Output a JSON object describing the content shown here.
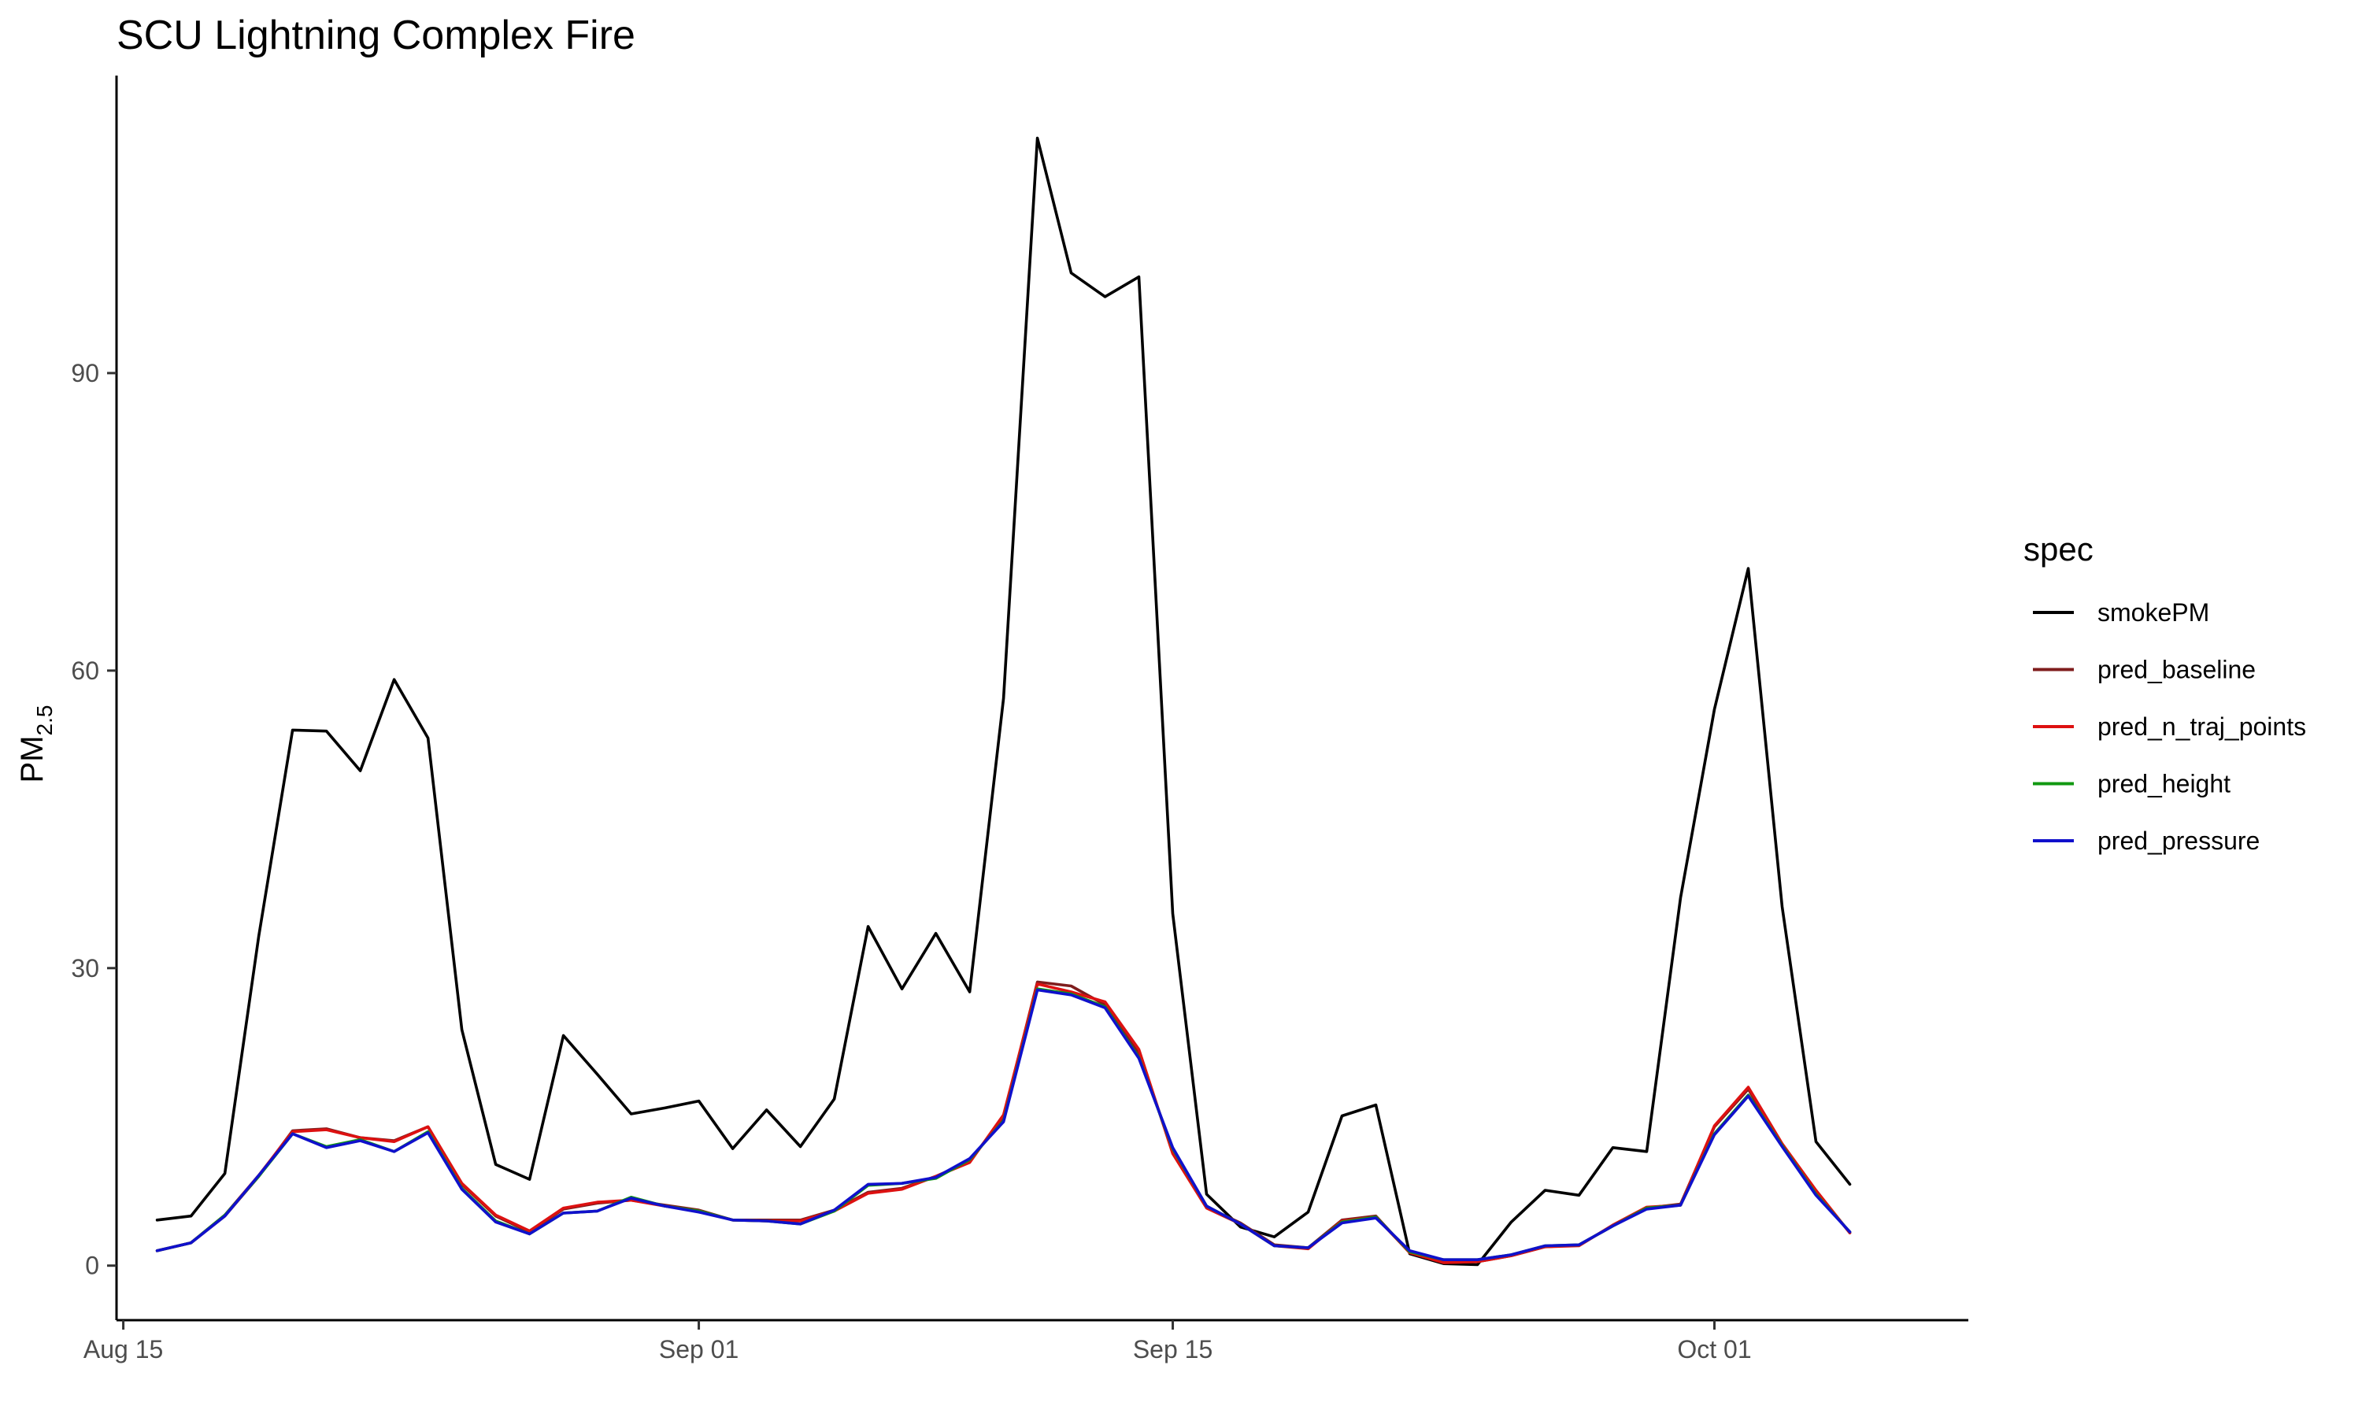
{
  "chart_data": {
    "type": "line",
    "title": "SCU Lightning Complex Fire",
    "ylabel_main": "PM",
    "ylabel_sub": "2.5",
    "xlabel": "",
    "ylim": [
      -5.5,
      120
    ],
    "xlim": [
      -1.2,
      53.5
    ],
    "x_start": "Aug 16",
    "x_step_days": 1,
    "yticks": [
      0,
      30,
      60,
      90
    ],
    "xticks": [
      {
        "day": -1,
        "label": "Aug 15"
      },
      {
        "day": 16,
        "label": "Sep 01"
      },
      {
        "day": 30,
        "label": "Sep 15"
      },
      {
        "day": 46,
        "label": "Oct 01"
      }
    ],
    "grid": false,
    "legend_title": "spec",
    "legend_position": "right",
    "series": [
      {
        "name": "smokePM",
        "color": "#000000",
        "values": [
          4.6,
          5.0,
          9.3,
          33.2,
          54.0,
          53.9,
          49.9,
          59.1,
          53.2,
          23.8,
          10.2,
          8.7,
          23.2,
          19.3,
          15.3,
          15.9,
          16.6,
          11.8,
          15.7,
          12.0,
          16.8,
          34.2,
          27.9,
          33.5,
          27.6,
          57.2,
          113.7,
          100.1,
          97.7,
          99.7,
          35.5,
          7.2,
          3.9,
          2.9,
          5.4,
          15.1,
          16.2,
          1.2,
          0.2,
          0.1,
          4.4,
          7.6,
          7.1,
          11.9,
          11.5,
          37.1,
          56.1,
          70.3,
          36.2,
          12.5,
          8.2
        ]
      },
      {
        "name": "pred_baseline",
        "color": "#7f1d1d",
        "values": [
          1.5,
          2.3,
          5.0,
          9.0,
          13.6,
          13.8,
          12.9,
          12.6,
          14.0,
          8.2,
          5.0,
          3.4,
          5.7,
          6.3,
          6.6,
          6.1,
          5.6,
          4.6,
          4.6,
          4.6,
          5.6,
          7.4,
          7.8,
          9.0,
          10.5,
          15.0,
          28.6,
          28.2,
          26.3,
          21.5,
          11.5,
          5.9,
          4.3,
          2.1,
          1.8,
          4.6,
          5.0,
          1.3,
          0.3,
          0.4,
          1.0,
          1.9,
          2.1,
          4.0,
          5.8,
          6.2,
          14.0,
          17.8,
          12.1,
          7.5,
          3.3
        ]
      },
      {
        "name": "pred_n_traj_points",
        "color": "#dd1111",
        "values": [
          1.5,
          2.3,
          5.1,
          9.1,
          13.5,
          13.7,
          12.9,
          12.5,
          14.0,
          8.3,
          5.1,
          3.5,
          5.8,
          6.4,
          6.6,
          6.0,
          5.5,
          4.6,
          4.5,
          4.5,
          5.5,
          7.3,
          7.7,
          9.0,
          10.4,
          15.2,
          28.4,
          27.6,
          26.6,
          21.8,
          11.3,
          5.8,
          4.2,
          2.0,
          1.7,
          4.5,
          4.9,
          1.3,
          0.3,
          0.4,
          1.0,
          1.9,
          2.0,
          4.1,
          5.9,
          6.1,
          14.1,
          18.0,
          12.3,
          7.6,
          3.3
        ]
      },
      {
        "name": "pred_height",
        "color": "#119911",
        "values": [
          1.5,
          2.3,
          5.1,
          9.0,
          13.3,
          12.0,
          12.7,
          11.5,
          13.5,
          7.8,
          4.5,
          3.2,
          5.3,
          5.5,
          6.9,
          6.0,
          5.5,
          4.6,
          4.5,
          4.2,
          5.5,
          8.1,
          8.3,
          8.8,
          10.7,
          14.6,
          27.9,
          27.4,
          26.1,
          21.0,
          11.8,
          6.0,
          4.2,
          2.0,
          1.8,
          4.4,
          4.9,
          1.4,
          0.6,
          0.6,
          1.1,
          2.0,
          2.1,
          4.0,
          5.8,
          6.1,
          13.3,
          17.2,
          12.1,
          7.2,
          3.4
        ]
      },
      {
        "name": "pred_pressure",
        "color": "#1010cc",
        "values": [
          1.5,
          2.3,
          5.0,
          9.1,
          13.3,
          11.9,
          12.6,
          11.5,
          13.4,
          7.7,
          4.4,
          3.2,
          5.3,
          5.5,
          6.8,
          6.0,
          5.4,
          4.6,
          4.5,
          4.2,
          5.6,
          8.2,
          8.3,
          8.9,
          10.8,
          14.5,
          27.8,
          27.3,
          26.0,
          20.9,
          11.9,
          6.0,
          4.2,
          2.0,
          1.8,
          4.3,
          4.8,
          1.5,
          0.6,
          0.6,
          1.1,
          2.0,
          2.1,
          4.0,
          5.7,
          6.1,
          13.2,
          17.1,
          12.0,
          7.1,
          3.4
        ]
      }
    ]
  }
}
